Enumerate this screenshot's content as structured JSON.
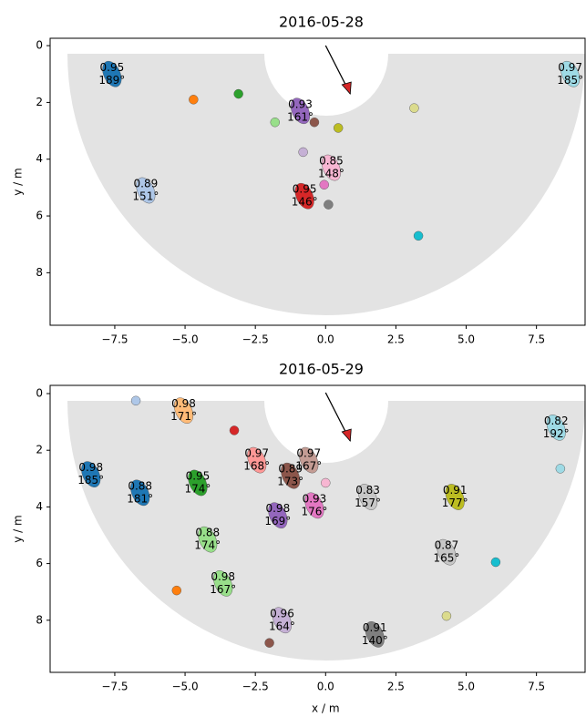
{
  "chart_data": [
    {
      "type": "blob-map",
      "title": "2016-05-28",
      "ylabel": "y / m",
      "xlim": [
        -9.8,
        9.23
      ],
      "ylim": [
        9.85,
        -0.26
      ],
      "xticks": [
        {
          "value": -7.5,
          "label": "−7.5"
        },
        {
          "value": -5,
          "label": "−5.0"
        },
        {
          "value": -2.5,
          "label": "−2.5"
        },
        {
          "value": 0,
          "label": "0.0"
        },
        2.5,
        {
          "value": 5,
          "label": "5.0"
        },
        7.5
      ],
      "yticks": [
        0,
        2,
        4,
        6,
        8
      ],
      "objects": [
        {
          "x": -7.6,
          "y": 1.0,
          "color": "#1f77b4",
          "score": 0.95,
          "angle": {
            "value": 189,
            "label": "189°"
          }
        },
        {
          "x": -4.7,
          "y": 1.9,
          "color": "#ff7f0e"
        },
        {
          "x": -3.1,
          "y": 1.7,
          "color": "#2ca02c"
        },
        {
          "x": -1.8,
          "y": 2.7,
          "color": "#98df8a"
        },
        {
          "x": -0.9,
          "y": 2.3,
          "color": "#9467bd",
          "score": 0.93,
          "angle": {
            "value": 161,
            "label": "161°"
          }
        },
        {
          "x": -0.4,
          "y": 2.7,
          "color": "#8c564b"
        },
        {
          "x": 0.45,
          "y": 2.9,
          "color": "#bcbd22"
        },
        {
          "x": -0.8,
          "y": 3.75,
          "color": "#c5b0d5"
        },
        {
          "x": 0.2,
          "y": 4.3,
          "color": "#f7b6d2",
          "score": 0.85,
          "angle": {
            "value": 148,
            "label": "148°"
          }
        },
        {
          "x": -0.05,
          "y": 4.9,
          "color": "#e377c2"
        },
        {
          "x": -0.75,
          "y": 5.3,
          "color": "#d62728",
          "score": 0.95,
          "angle": {
            "value": 146,
            "label": "146°"
          }
        },
        {
          "x": 0.1,
          "y": 5.6,
          "color": "#7f7f7f"
        },
        {
          "x": -6.4,
          "y": 5.1,
          "color": "#aec7e8",
          "score": 0.89,
          "angle": {
            "value": 151,
            "label": "151°"
          }
        },
        {
          "x": 3.15,
          "y": 2.2,
          "color": "#dbdb8d"
        },
        {
          "x": 3.3,
          "y": 6.7,
          "color": "#17becf"
        },
        {
          "x": 8.7,
          "y": 1.0,
          "color": "#9edae5",
          "score": 0.97,
          "angle": {
            "value": 185,
            "label": "185°"
          }
        }
      ]
    },
    {
      "type": "blob-map",
      "title": "2016-05-29",
      "xlabel": "x / m",
      "ylabel": "y / m",
      "xlim": [
        -9.8,
        9.23
      ],
      "ylim": [
        9.84,
        -0.29
      ],
      "xticks": [
        {
          "value": -7.5,
          "label": "−7.5"
        },
        {
          "value": -5,
          "label": "−5.0"
        },
        {
          "value": -2.5,
          "label": "−2.5"
        },
        {
          "value": 0,
          "label": "0.0"
        },
        2.5,
        {
          "value": 5,
          "label": "5.0"
        },
        7.5
      ],
      "yticks": [
        0,
        2,
        4,
        6,
        8
      ],
      "objects": [
        {
          "x": -6.75,
          "y": 0.25,
          "color": "#aec7e8"
        },
        {
          "x": -5.05,
          "y": 0.6,
          "color": "#ffbb78",
          "score": 0.98,
          "angle": {
            "value": 171,
            "label": "171°"
          }
        },
        {
          "x": -3.25,
          "y": 1.3,
          "color": "#d62728"
        },
        {
          "x": -8.35,
          "y": 2.85,
          "color": "#1f77b4",
          "score": 0.98,
          "angle": {
            "value": 185,
            "label": "185°"
          }
        },
        {
          "x": -6.6,
          "y": 3.5,
          "color": "#1f77b4",
          "score": 0.88,
          "angle": {
            "value": 181,
            "label": "181°"
          }
        },
        {
          "x": -4.55,
          "y": 3.15,
          "color": "#2ca02c",
          "score": 0.95,
          "angle": {
            "value": 174,
            "label": "174°"
          }
        },
        {
          "x": -2.45,
          "y": 2.35,
          "color": "#ff9896",
          "score": 0.97,
          "angle": {
            "value": 168,
            "label": "168°"
          }
        },
        {
          "x": -0.6,
          "y": 2.35,
          "color": "#c49c94",
          "score": 0.97,
          "angle": {
            "value": 167,
            "label": "167°"
          }
        },
        {
          "x": -1.25,
          "y": 2.9,
          "color": "#8c564b",
          "score": 0.89,
          "angle": {
            "value": 173,
            "label": "173°"
          }
        },
        {
          "x": -1.7,
          "y": 4.3,
          "color": "#9467bd",
          "score": 0.98,
          "angle": {
            "value": 169,
            "label": "169°"
          }
        },
        {
          "x": -0.4,
          "y": 3.95,
          "color": "#e377c2",
          "score": 0.93,
          "angle": {
            "value": 176,
            "label": "176°"
          }
        },
        {
          "x": 0.0,
          "y": 3.15,
          "color": "#f7b6d2"
        },
        {
          "x": 1.5,
          "y": 3.65,
          "color": "#c7c7c7",
          "score": 0.83,
          "angle": {
            "value": 157,
            "label": "157°"
          }
        },
        {
          "x": 4.6,
          "y": 3.65,
          "color": "#bcbd22",
          "score": 0.91,
          "angle": {
            "value": 177,
            "label": "177°"
          }
        },
        {
          "x": -4.2,
          "y": 5.15,
          "color": "#98df8a",
          "score": 0.88,
          "angle": {
            "value": 174,
            "label": "174°"
          }
        },
        {
          "x": 4.3,
          "y": 5.6,
          "color": "#c7c7c7",
          "score": 0.87,
          "angle": {
            "value": 165,
            "label": "165°"
          }
        },
        {
          "x": 6.05,
          "y": 5.95,
          "color": "#17becf"
        },
        {
          "x": -3.65,
          "y": 6.7,
          "color": "#98df8a",
          "score": 0.98,
          "angle": {
            "value": 167,
            "label": "167°"
          }
        },
        {
          "x": -5.3,
          "y": 6.95,
          "color": "#ff7f0e"
        },
        {
          "x": -1.55,
          "y": 8.0,
          "color": "#c5b0d5",
          "score": 0.96,
          "angle": {
            "value": 164,
            "label": "164°"
          }
        },
        {
          "x": 4.3,
          "y": 7.85,
          "color": "#dbdb8d"
        },
        {
          "x": -2.0,
          "y": 8.8,
          "color": "#8c564b"
        },
        {
          "x": 1.75,
          "y": 8.5,
          "color": "#7f7f7f",
          "score": 0.91,
          "angle": {
            "value": 140,
            "label": "140°"
          }
        },
        {
          "x": 8.2,
          "y": 1.2,
          "color": "#9edae5",
          "score": 0.82,
          "angle": {
            "value": 192,
            "label": "192°"
          }
        },
        {
          "x": 8.35,
          "y": 2.65,
          "color": "#9edae5"
        }
      ]
    }
  ]
}
